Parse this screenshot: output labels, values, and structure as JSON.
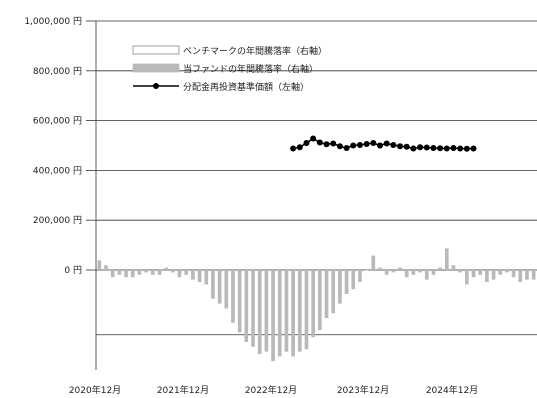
{
  "chart_data": {
    "type": "bar+line",
    "y_axis_left": {
      "ticks": [
        "1,000,000 円",
        "800,000 円",
        "600,000 円",
        "400,000 円",
        "200,000 円",
        "0 円"
      ],
      "ylim": [
        0,
        1000000
      ]
    },
    "x_axis": {
      "ticks": [
        "2020年12月",
        "2021年12月",
        "2022年12月",
        "2023年12月",
        "2024年12月"
      ]
    },
    "legend": {
      "placement": "top-left",
      "entries": [
        {
          "label": "ベンチマークの年間騰落率（右軸）",
          "kind": "bar-outline"
        },
        {
          "label": "当ファンドの年間騰落率（右軸）",
          "kind": "bar-fill"
        },
        {
          "label": "分配金再投資基準価額（左軸）",
          "kind": "line-marker"
        }
      ]
    },
    "series": [
      {
        "name": "分配金再投資基準価額（左軸）",
        "type": "line",
        "axis": "left",
        "start_index": 29,
        "values": [
          488000,
          493000,
          510000,
          528000,
          512000,
          505000,
          508000,
          497000,
          490000,
          500000,
          502000,
          506000,
          510000,
          500000,
          508000,
          502000,
          497000,
          495000,
          488000,
          493000,
          492000,
          490000,
          489000,
          488000,
          490000,
          488000,
          487000,
          488000
        ]
      },
      {
        "name": "当ファンドの年間騰落率（右軸）",
        "type": "bar",
        "axis": "right",
        "values": [
          4,
          2,
          -3,
          -2,
          -3,
          -3,
          -2,
          -1,
          -2,
          -2,
          1,
          -1,
          -3,
          -2,
          -4,
          -5,
          -6,
          -12,
          -14,
          -16,
          -22,
          -26,
          -30,
          -32,
          -35,
          -34,
          -38,
          -36,
          -34,
          -36,
          -34,
          -33,
          -28,
          -25,
          -20,
          -18,
          -14,
          -10,
          -8,
          -5,
          0,
          6,
          1,
          -2,
          -1,
          1,
          -3,
          -2,
          -1,
          -4,
          -2,
          1,
          9,
          2,
          -1,
          -6,
          -3,
          -2,
          -5,
          -4,
          -2,
          -1,
          -3,
          -5,
          -4,
          -4
        ]
      }
    ],
    "grid": "horizontal",
    "colors": {
      "line": "#000000",
      "bar_fill": "#b9b9b9",
      "bar_outline": "#8a8a8a",
      "grid": "#333333"
    }
  }
}
